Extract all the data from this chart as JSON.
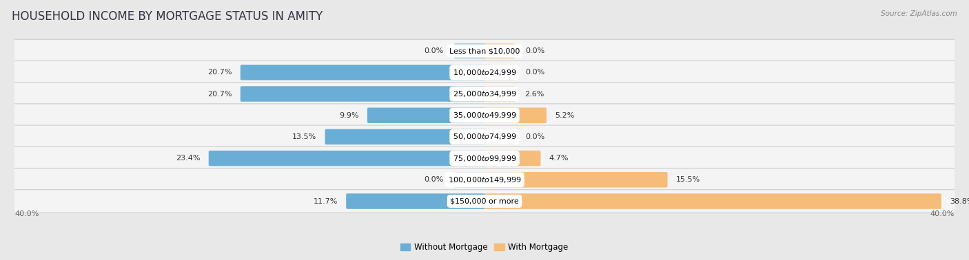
{
  "title": "HOUSEHOLD INCOME BY MORTGAGE STATUS IN AMITY",
  "source": "Source: ZipAtlas.com",
  "categories": [
    "Less than $10,000",
    "$10,000 to $24,999",
    "$25,000 to $34,999",
    "$35,000 to $49,999",
    "$50,000 to $74,999",
    "$75,000 to $99,999",
    "$100,000 to $149,999",
    "$150,000 or more"
  ],
  "without_mortgage": [
    0.0,
    20.7,
    20.7,
    9.9,
    13.5,
    23.4,
    0.0,
    11.7
  ],
  "with_mortgage": [
    0.0,
    0.0,
    2.6,
    5.2,
    0.0,
    4.7,
    15.5,
    38.8
  ],
  "color_without": "#6aaed6",
  "color_with": "#f5bc7a",
  "axis_limit": 40.0,
  "background_color": "#e8e8e8",
  "row_bg_color": "#f4f4f4",
  "row_border_color": "#cccccc",
  "title_color": "#333344",
  "label_color": "#333333",
  "title_fontsize": 12,
  "label_fontsize": 8,
  "tick_fontsize": 8,
  "value_fontsize": 8
}
